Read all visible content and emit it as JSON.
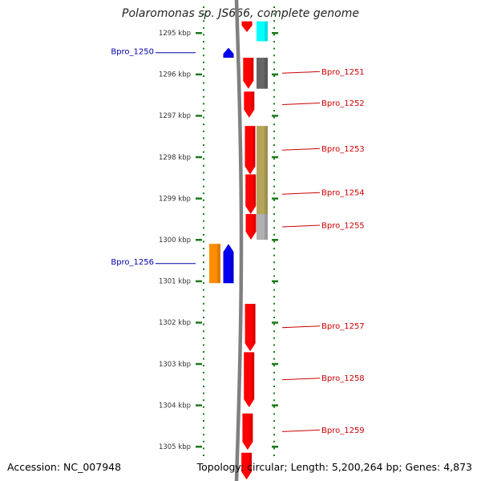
{
  "title": "Polaromonas sp. JS666, complete genome",
  "footer": {
    "accession": "Accession: NC_007948",
    "topology": "Topology: circular; Length: 5,200,264 bp; Genes: 4,873"
  },
  "colors": {
    "backbone": "#808080",
    "forward_gene": "#ff0000",
    "reverse_gene": "#0000ee",
    "label_right": "#cc0000",
    "label_left": "#0000aa",
    "tick": "#1a7a1a"
  },
  "ruler": {
    "unit": "kbp",
    "ticks": [
      "1295 kbp",
      "1296 kbp",
      "1297 kbp",
      "1298 kbp",
      "1299 kbp",
      "1300 kbp",
      "1301 kbp",
      "1302 kbp",
      "1303 kbp",
      "1304 kbp",
      "1305 kbp"
    ]
  },
  "genes": [
    {
      "id": "top-partial",
      "strand": "+",
      "start_kbp": 1294.72,
      "end_kbp": 1294.98,
      "label": ""
    },
    {
      "id": "Bpro_1250",
      "strand": "-",
      "start_kbp": 1295.36,
      "end_kbp": 1295.6,
      "label": "Bpro_1250"
    },
    {
      "id": "Bpro_1251",
      "strand": "+",
      "start_kbp": 1295.6,
      "end_kbp": 1296.35,
      "label": "Bpro_1251"
    },
    {
      "id": "Bpro_1252",
      "strand": "+",
      "start_kbp": 1296.42,
      "end_kbp": 1297.05,
      "label": "Bpro_1252"
    },
    {
      "id": "Bpro_1253",
      "strand": "+",
      "start_kbp": 1297.25,
      "end_kbp": 1298.42,
      "label": "Bpro_1253"
    },
    {
      "id": "Bpro_1254",
      "strand": "+",
      "start_kbp": 1298.42,
      "end_kbp": 1299.38,
      "label": "Bpro_1254"
    },
    {
      "id": "Bpro_1255",
      "strand": "+",
      "start_kbp": 1299.38,
      "end_kbp": 1300.0,
      "label": "Bpro_1255"
    },
    {
      "id": "Bpro_1256",
      "strand": "-",
      "start_kbp": 1300.1,
      "end_kbp": 1301.05,
      "label": "Bpro_1256"
    },
    {
      "id": "Bpro_1257",
      "strand": "+",
      "start_kbp": 1301.55,
      "end_kbp": 1302.7,
      "label": "Bpro_1257"
    },
    {
      "id": "Bpro_1258",
      "strand": "+",
      "start_kbp": 1302.72,
      "end_kbp": 1304.05,
      "label": "Bpro_1258"
    },
    {
      "id": "Bpro_1259",
      "strand": "+",
      "start_kbp": 1304.2,
      "end_kbp": 1305.08,
      "label": "Bpro_1259"
    },
    {
      "id": "bottom-partial",
      "strand": "+",
      "start_kbp": 1305.15,
      "end_kbp": 1305.8,
      "label": ""
    }
  ],
  "features": [
    {
      "id": "feat-cyan",
      "color": "#00ffff",
      "start_kbp": 1294.72,
      "end_kbp": 1295.2
    },
    {
      "id": "feat-gray-dark",
      "color": "#666666",
      "start_kbp": 1295.6,
      "end_kbp": 1296.35
    },
    {
      "id": "feat-olive",
      "color": "#b5a55a",
      "start_kbp": 1297.25,
      "end_kbp": 1299.38
    },
    {
      "id": "feat-gray-light",
      "color": "#b0b0b0",
      "start_kbp": 1299.38,
      "end_kbp": 1300.0
    },
    {
      "id": "feat-orange",
      "color": "#ff8c00",
      "start_kbp": 1300.1,
      "end_kbp": 1301.05
    }
  ]
}
